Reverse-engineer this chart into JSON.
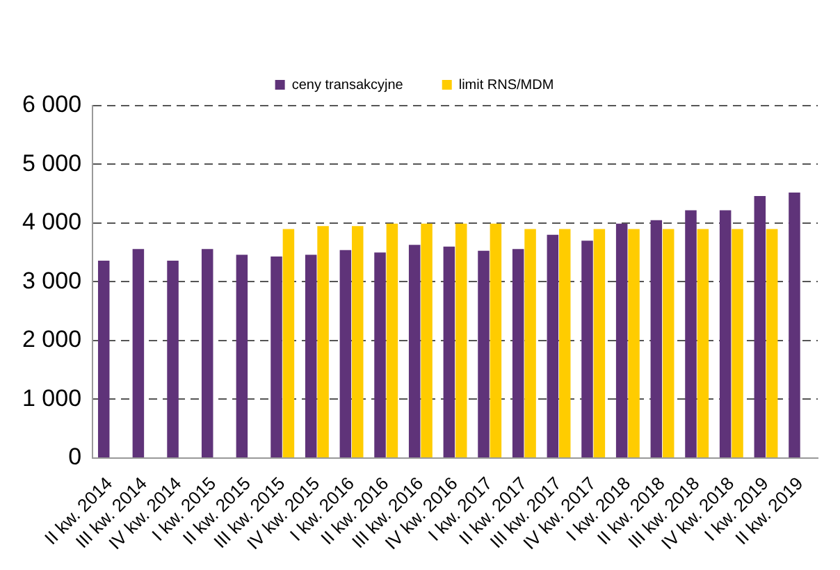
{
  "chart_data": {
    "type": "bar",
    "categories": [
      "II kw. 2014",
      "III kw. 2014",
      "IV kw. 2014",
      "I kw. 2015",
      "II kw. 2015",
      "III kw. 2015",
      "IV kw. 2015",
      "I kw. 2016",
      "II kw. 2016",
      "III kw. 2016",
      "IV kw. 2016",
      "I kw. 2017",
      "II kw. 2017",
      "III kw. 2017",
      "IV kw. 2017",
      "I kw. 2018",
      "II kw. 2018",
      "III kw. 2018",
      "IV kw. 2018",
      "I kw. 2019",
      "II kw. 2019"
    ],
    "series": [
      {
        "name": "ceny transakcyjne",
        "color": "#5f3379",
        "values": [
          3360,
          3560,
          3360,
          3560,
          3460,
          3430,
          3460,
          3540,
          3500,
          3630,
          3600,
          3530,
          3560,
          3800,
          3700,
          3990,
          4050,
          4220,
          4220,
          4460,
          4520
        ]
      },
      {
        "name": "limit RNS/MDM",
        "color": "#ffcc00",
        "values": [
          null,
          null,
          null,
          null,
          null,
          3900,
          3950,
          3950,
          3990,
          3990,
          3990,
          3990,
          3900,
          3900,
          3900,
          3900,
          3900,
          3900,
          3900,
          3900,
          null
        ]
      }
    ],
    "ylim": [
      0,
      6000
    ],
    "yticks": [
      0,
      {
        "value": 1000,
        "label": "1 000"
      },
      {
        "value": 2000,
        "label": "2 000"
      },
      {
        "value": 3000,
        "label": "3 000"
      },
      {
        "value": 4000,
        "label": "4 000"
      },
      {
        "value": 5000,
        "label": "5 000"
      },
      {
        "value": 6000,
        "label": "6 000"
      }
    ],
    "grid": "y",
    "legend": "top"
  }
}
